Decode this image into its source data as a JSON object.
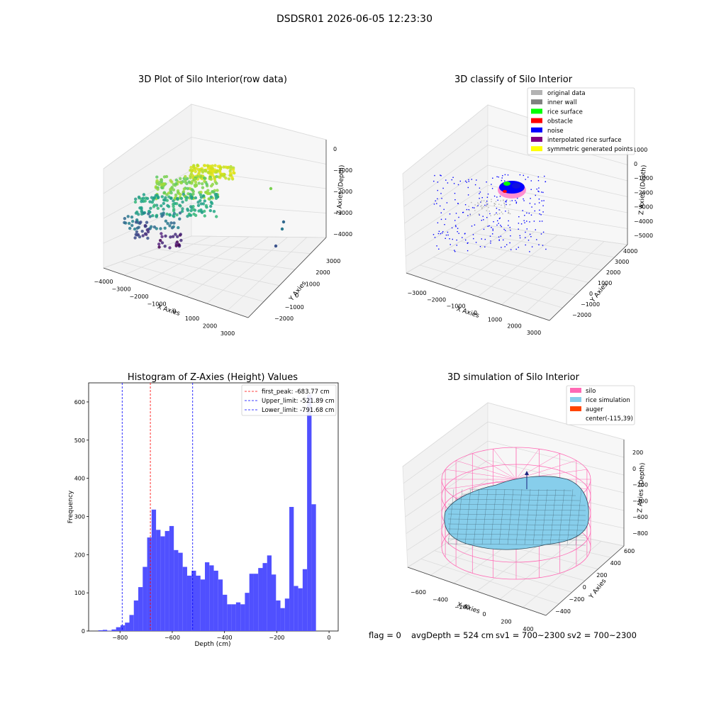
{
  "suptitle": "DSDSR01 2026-06-05 12:23:30",
  "footer": {
    "flag": "flag = 0",
    "avg_depth": "avgDepth = 524 cm",
    "sv1": "sv1 = 700~2300",
    "sv2": "sv2 = 700~2300"
  },
  "plot_raw": {
    "title": "3D Plot of Silo Interior(row data)",
    "xlabel": "X Axies",
    "ylabel": "Y Axies",
    "zlabel": "Z Axies (Depth)",
    "xticks": [
      "−4000",
      "−3000",
      "−2000",
      "−1000",
      "0",
      "1000",
      "2000",
      "3000"
    ],
    "yticks": [
      "−2000",
      "−1000",
      "0",
      "1000",
      "2000",
      "3000"
    ],
    "zticks": [
      "0",
      "−1000",
      "−2000",
      "−3000",
      "−4000"
    ]
  },
  "plot_classify": {
    "title": "3D classify of Silo Interior",
    "xlabel": "X Axies",
    "ylabel": "Y Axies",
    "zlabel": "Z Axies (Depth)",
    "xticks": [
      "−3000",
      "−2000",
      "−1000",
      "0",
      "1000",
      "2000",
      "3000"
    ],
    "yticks": [
      "−2000",
      "−1000",
      "0",
      "1000",
      "2000",
      "3000",
      "4000"
    ],
    "zticks": [
      "0",
      "−1000",
      "−2000",
      "−3000",
      "−4000",
      "−5000"
    ],
    "z_extra_tick": "1000",
    "legend": [
      {
        "label": "original data",
        "color": "#b3b3b3"
      },
      {
        "label": "inner wall",
        "color": "#808080"
      },
      {
        "label": "rice surface",
        "color": "#00ff00"
      },
      {
        "label": "obstacle",
        "color": "#ff0000"
      },
      {
        "label": "noise",
        "color": "#0000ff"
      },
      {
        "label": "interpolated rice surface",
        "color": "#800080"
      },
      {
        "label": "symmetric generated points",
        "color": "#ffff00"
      }
    ]
  },
  "plot_sim": {
    "title": "3D simulation of Silo Interior",
    "xlabel": "X Axies",
    "ylabel": "Y Axies",
    "zlabel": "Z Axies (Depth)",
    "xticks": [
      "−600",
      "−400",
      "−200",
      "0",
      "200",
      "400"
    ],
    "yticks": [
      "−400",
      "−200",
      "0",
      "200",
      "400",
      "600"
    ],
    "zticks": [
      "200",
      "0",
      "−200",
      "−400",
      "−600",
      "−800"
    ],
    "legend": [
      {
        "label": "silo",
        "color": "#ff69b4"
      },
      {
        "label": "rice simulation",
        "color": "#87ceeb"
      },
      {
        "label": "auger",
        "color": "#ff4500"
      },
      {
        "label": "center(-115,39)",
        "color": ""
      }
    ]
  },
  "chart_data": {
    "type": "bar",
    "title": "Histogram of Z-Axies (Height) Values",
    "xlabel": "Depth (cm)",
    "ylabel": "Frequency",
    "xlim": [
      -920,
      35
    ],
    "ylim": [
      0,
      650
    ],
    "xticks": [
      -800,
      -600,
      -400,
      -200,
      0
    ],
    "yticks": [
      0,
      100,
      200,
      300,
      400,
      500,
      600
    ],
    "bin_width": 17,
    "bin_starts": [
      -900,
      -883,
      -866,
      -849,
      -832,
      -815,
      -798,
      -781,
      -764,
      -747,
      -730,
      -713,
      -696,
      -679,
      -662,
      -645,
      -628,
      -611,
      -594,
      -577,
      -560,
      -543,
      -526,
      -509,
      -492,
      -475,
      -458,
      -441,
      -424,
      -407,
      -390,
      -373,
      -356,
      -339,
      -322,
      -305,
      -288,
      -271,
      -254,
      -237,
      -220,
      -203,
      -186,
      -169,
      -152,
      -135,
      -118,
      -101,
      -84,
      -67,
      -50,
      -33,
      -16
    ],
    "values": [
      0,
      2,
      3,
      1,
      4,
      10,
      15,
      22,
      42,
      80,
      115,
      168,
      245,
      318,
      265,
      248,
      262,
      275,
      212,
      205,
      168,
      145,
      158,
      145,
      135,
      180,
      172,
      158,
      135,
      95,
      70,
      70,
      75,
      70,
      100,
      150,
      150,
      165,
      178,
      198,
      148,
      80,
      60,
      85,
      325,
      118,
      112,
      162,
      620,
      332,
      0,
      0,
      0
    ],
    "lines": [
      {
        "name": "first_peak: -683.77 cm",
        "x": -683.77,
        "color": "#ff0000"
      },
      {
        "name": "Upper_limit: -521.89 cm",
        "x": -521.89,
        "color": "#0000ff"
      },
      {
        "name": "Lower_limit: -791.68 cm",
        "x": -791.68,
        "color": "#0000ff"
      }
    ],
    "bar_color": "#5050ff"
  }
}
